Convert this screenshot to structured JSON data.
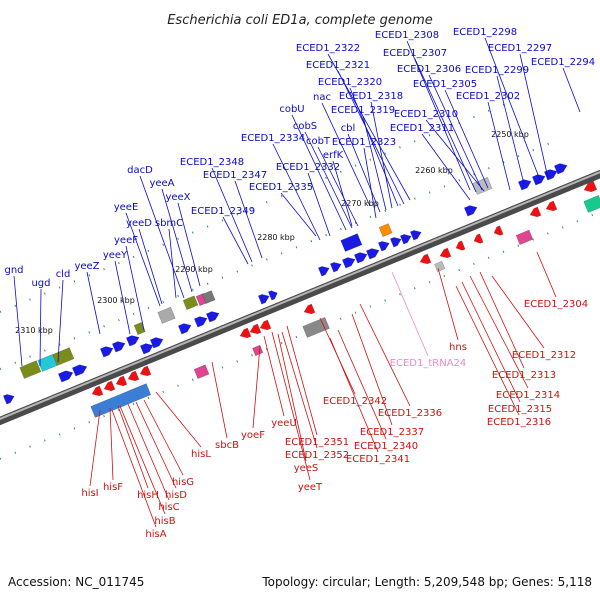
{
  "title": "Escherichia coli ED1a, complete genome",
  "footer": {
    "accession": "Accession: NC_011745",
    "summary": "Topology: circular; Length: 5,209,548 bp; Genes: 5,118"
  },
  "colors": {
    "forward_label": "#0a0acc",
    "reverse_label": "#cc1111",
    "trna_label": "#ee88cc",
    "backbone": "#777777",
    "tick": "#228822"
  },
  "ticks": [
    "2250 kbp",
    "2260 kbp",
    "2270 kbp",
    "2280 kbp",
    "2290 kbp",
    "2300 kbp",
    "2310 kbp"
  ],
  "forward_labels": [
    "ECED1_2308",
    "ECED1_2298",
    "ECED1_2322",
    "ECED1_2307",
    "ECED1_2297",
    "ECED1_2321",
    "ECED1_2306",
    "ECED1_2299",
    "ECED1_2294",
    "ECED1_2320",
    "ECED1_2305",
    "nac",
    "ECED1_2318",
    "ECED1_2302",
    "cobU",
    "ECED1_2319",
    "ECED1_2310",
    "cobS",
    "cbl",
    "ECED1_2311",
    "ECED1_2334",
    "cobT",
    "ECED1_2323",
    "erfK",
    "ECED1_2348",
    "ECED1_2332",
    "dacD",
    "ECED1_2347",
    "yeeA",
    "ECED1_2335",
    "yeeX",
    "yeeE",
    "sbmC",
    "ECED1_2349",
    "yeeD",
    "yeeF",
    "yeeY",
    "gnd",
    "cld",
    "yeeZ",
    "ugd"
  ],
  "reverse_labels": [
    "ECED1_2304",
    "hns",
    "ECED1_2312",
    "ECED1_2313",
    "ECED1_2314",
    "ECED1_2315",
    "ECED1_2316",
    "ECED1_2342",
    "ECED1_2336",
    "ECED1_2337",
    "ECED1_2351",
    "ECED1_2340",
    "ECED1_2352",
    "ECED1_2341",
    "yeeS",
    "yeeT",
    "yeeU",
    "yoeF",
    "sbcB",
    "hisL",
    "hisG",
    "hisD",
    "hisC",
    "hisB",
    "hisA",
    "hisH",
    "hisF",
    "hisI"
  ],
  "trna_labels": [
    "ECED1_tRNA24"
  ]
}
